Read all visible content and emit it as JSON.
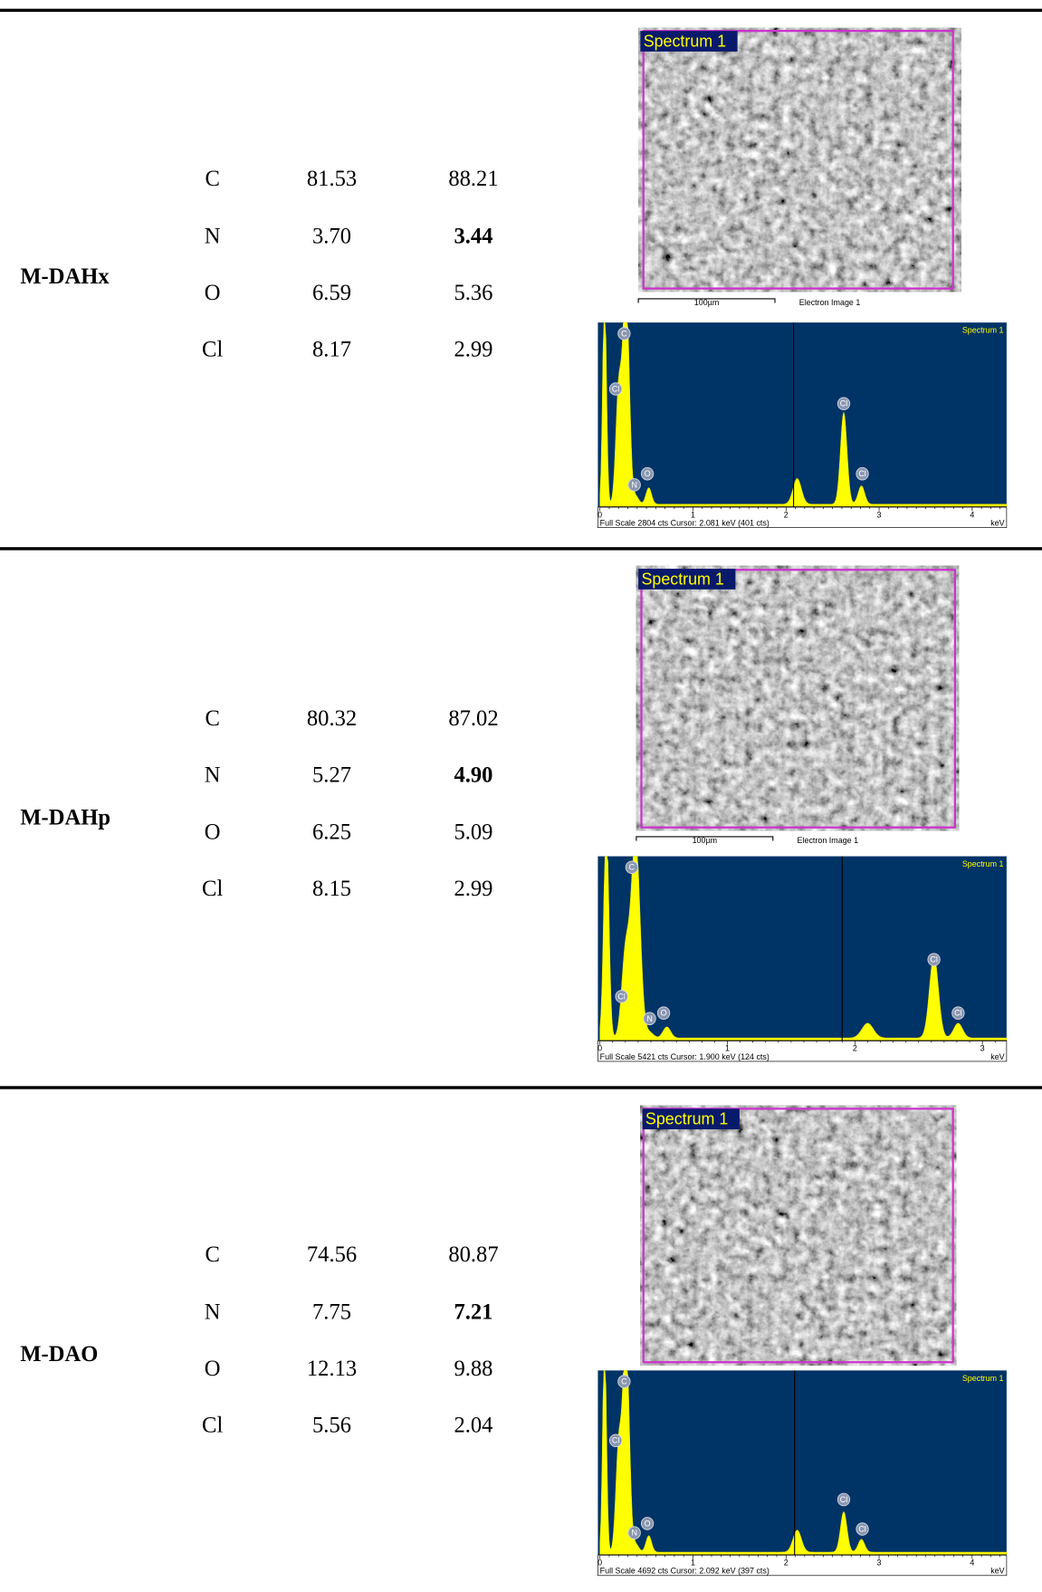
{
  "rows": [
    {
      "sample": "M-DAHx",
      "elements": [
        {
          "symbol": "C",
          "col1": "81.53",
          "col2": "88.21"
        },
        {
          "symbol": "N",
          "col1": "3.70",
          "col2": "3.44",
          "bold": true
        },
        {
          "symbol": "O",
          "col1": "6.59",
          "col2": "5.36"
        },
        {
          "symbol": "Cl",
          "col1": "8.17",
          "col2": "2.99"
        }
      ],
      "image": {
        "label": "Spectrum 1",
        "scale_bar": "100µm",
        "caption": "Electron Image 1"
      },
      "spectrum": {
        "title": "Spectrum 1",
        "peaks": [
          "C",
          "Cl",
          "N",
          "O",
          "Cl",
          "Cl"
        ],
        "ticks": [
          "0",
          "1",
          "2",
          "3",
          "4"
        ],
        "footer": "Full Scale 2804 cts  Cursor: 2.081 keV (401 cts)",
        "unit": "keV"
      }
    },
    {
      "sample": "M-DAHp",
      "elements": [
        {
          "symbol": "C",
          "col1": "80.32",
          "col2": "87.02"
        },
        {
          "symbol": "N",
          "col1": "5.27",
          "col2": "4.90",
          "bold": true
        },
        {
          "symbol": "O",
          "col1": "6.25",
          "col2": "5.09"
        },
        {
          "symbol": "Cl",
          "col1": "8.15",
          "col2": "2.99"
        }
      ],
      "image": {
        "label": "Spectrum 1",
        "scale_bar": "100µm",
        "caption": "Electron Image 1"
      },
      "spectrum": {
        "title": "Spectrum 1",
        "peaks": [
          "C",
          "Cl",
          "N",
          "O",
          "Cl",
          "Cl"
        ],
        "ticks": [
          "0",
          "1",
          "2",
          "3"
        ],
        "footer": "Full Scale 5421 cts  Cursor: 1.900 keV (124 cts)",
        "unit": "keV"
      }
    },
    {
      "sample": "M-DAO",
      "elements": [
        {
          "symbol": "C",
          "col1": "74.56",
          "col2": "80.87"
        },
        {
          "symbol": "N",
          "col1": "7.75",
          "col2": "7.21",
          "bold": true
        },
        {
          "symbol": "O",
          "col1": "12.13",
          "col2": "9.88"
        },
        {
          "symbol": "Cl",
          "col1": "5.56",
          "col2": "2.04"
        }
      ],
      "image": {
        "label": "Spectrum 1"
      },
      "spectrum": {
        "title": "Spectrum 1",
        "peaks": [
          "C",
          "Cl",
          "N",
          "O",
          "Cl",
          "Cl"
        ],
        "ticks": [
          "0",
          "1",
          "2",
          "3",
          "4"
        ],
        "footer": "Full Scale 4692 cts  Cursor: 2.092 keV (397 cts)",
        "unit": "keV"
      }
    }
  ]
}
